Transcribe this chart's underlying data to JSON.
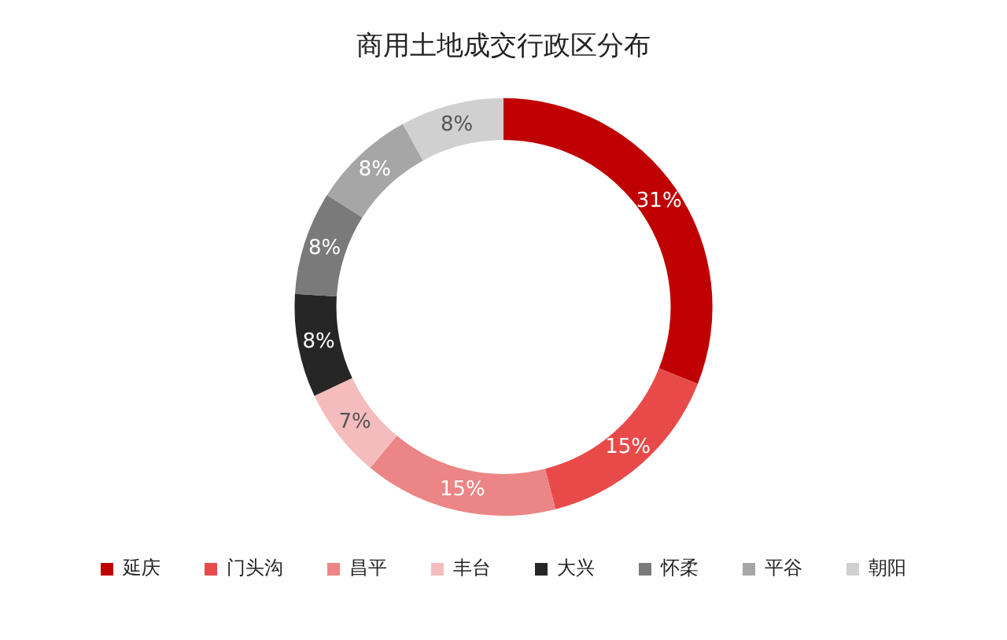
{
  "chart_data": {
    "type": "donut",
    "title": "商用土地成交行政区分布",
    "categories": [
      "延庆",
      "门头沟",
      "昌平",
      "丰台",
      "大兴",
      "怀柔",
      "平谷",
      "朝阳"
    ],
    "values": [
      31,
      15,
      15,
      7,
      8,
      8,
      8,
      8
    ],
    "value_labels": [
      "31%",
      "15%",
      "15%",
      "7%",
      "8%",
      "8%",
      "8%",
      "8%"
    ],
    "colors": [
      "#c00000",
      "#e84a4a",
      "#ec8585",
      "#f4bcbc",
      "#262626",
      "#7a7a7a",
      "#a6a6a6",
      "#d0d0d0"
    ],
    "legend": "bottom"
  }
}
